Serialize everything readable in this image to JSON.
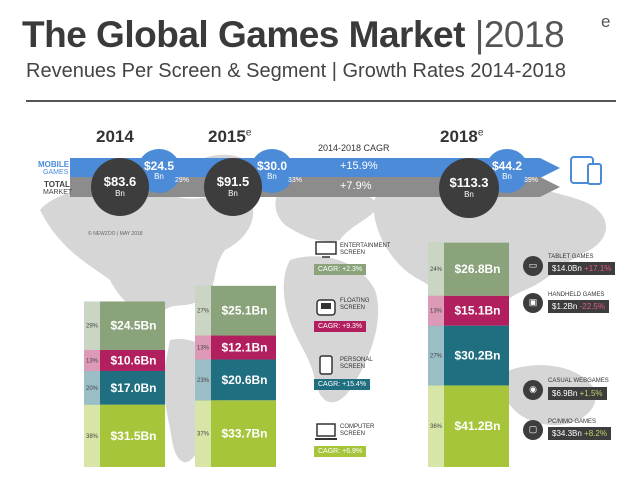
{
  "header": {
    "title": "The Global Games Market",
    "title_year": "2018",
    "title_year_sup": "e",
    "subtitle": "Revenues Per Screen & Segment | Growth Rates 2014-2018"
  },
  "legend": {
    "mobile": "MOBILE",
    "games": "GAMES",
    "total": "TOTAL",
    "market": "MARKET"
  },
  "cagr_header": "2014-2018 CAGR",
  "cagr_mobile": "+15.9%",
  "cagr_total": "+7.9%",
  "copyright": "© NEWZOO | MAY 2018",
  "years": [
    {
      "label": "2014",
      "sup": "",
      "total": "$83.6",
      "mobile": "$24.5",
      "unit": "Bn",
      "mobile_share": "29%"
    },
    {
      "label": "2015",
      "sup": "e",
      "total": "$91.5",
      "mobile": "$30.0",
      "unit": "Bn",
      "mobile_share": "33%"
    },
    {
      "label": "2018",
      "sup": "e",
      "total": "$113.3",
      "mobile": "$44.2",
      "unit": "Bn",
      "mobile_share": "39%"
    }
  ],
  "segments": [
    {
      "name": "ENTERTAINMENT SCREEN",
      "cagr": "CAGR: +2.3%",
      "color": "#8aa37a"
    },
    {
      "name": "FLOATING SCREEN",
      "cagr": "CAGR: +9.3%",
      "color": "#b21f5f"
    },
    {
      "name": "PERSONAL SCREEN",
      "cagr": "CAGR: +15.4%",
      "color": "#1f6f80"
    },
    {
      "name": "COMPUTER SCREEN",
      "cagr": "CAGR: +6.9%",
      "color": "#a6c53a"
    }
  ],
  "sub_segments": [
    {
      "name": "TABLET GAMES",
      "value": "$14.0Bn",
      "cagr": "+17.1%"
    },
    {
      "name": "HANDHELD GAMES",
      "value": "$1.2Bn",
      "cagr": "-22.5%"
    },
    {
      "name": "CASUAL WEBGAMES",
      "value": "$6.9Bn",
      "cagr": "+1.5%"
    },
    {
      "name": "PC/MMO GAMES",
      "value": "$34.3Bn",
      "cagr": "+8.2%"
    }
  ],
  "chart_data": {
    "type": "bar",
    "stacked": true,
    "title": "The Global Games Market | 2018e",
    "categories": [
      "2014",
      "2015e",
      "2018e"
    ],
    "series": [
      {
        "name": "COMPUTER SCREEN",
        "values": [
          31.5,
          33.7,
          41.2
        ],
        "labels": [
          "$31.5Bn",
          "$33.7Bn",
          "$41.2Bn"
        ],
        "shares": [
          "38%",
          "37%",
          "36%"
        ],
        "color": "#a6c53a"
      },
      {
        "name": "PERSONAL SCREEN",
        "values": [
          17.0,
          20.6,
          30.2
        ],
        "labels": [
          "$17.0Bn",
          "$20.6Bn",
          "$30.2Bn"
        ],
        "shares": [
          "20%",
          "23%",
          "27%"
        ],
        "color": "#1f6f80"
      },
      {
        "name": "FLOATING SCREEN",
        "values": [
          10.6,
          12.1,
          15.1
        ],
        "labels": [
          "$10.6Bn",
          "$12.1Bn",
          "$15.1Bn"
        ],
        "shares": [
          "13%",
          "13%",
          "13%"
        ],
        "color": "#b21f5f"
      },
      {
        "name": "ENTERTAINMENT SCREEN",
        "values": [
          24.5,
          25.1,
          26.8
        ],
        "labels": [
          "$24.5Bn",
          "$25.1Bn",
          "$26.8Bn"
        ],
        "shares": [
          "29%",
          "27%",
          "24%"
        ],
        "color": "#8aa37a"
      }
    ],
    "totals": [
      83.6,
      91.5,
      113.3
    ],
    "mobile_totals": [
      24.5,
      30.0,
      44.2
    ]
  }
}
